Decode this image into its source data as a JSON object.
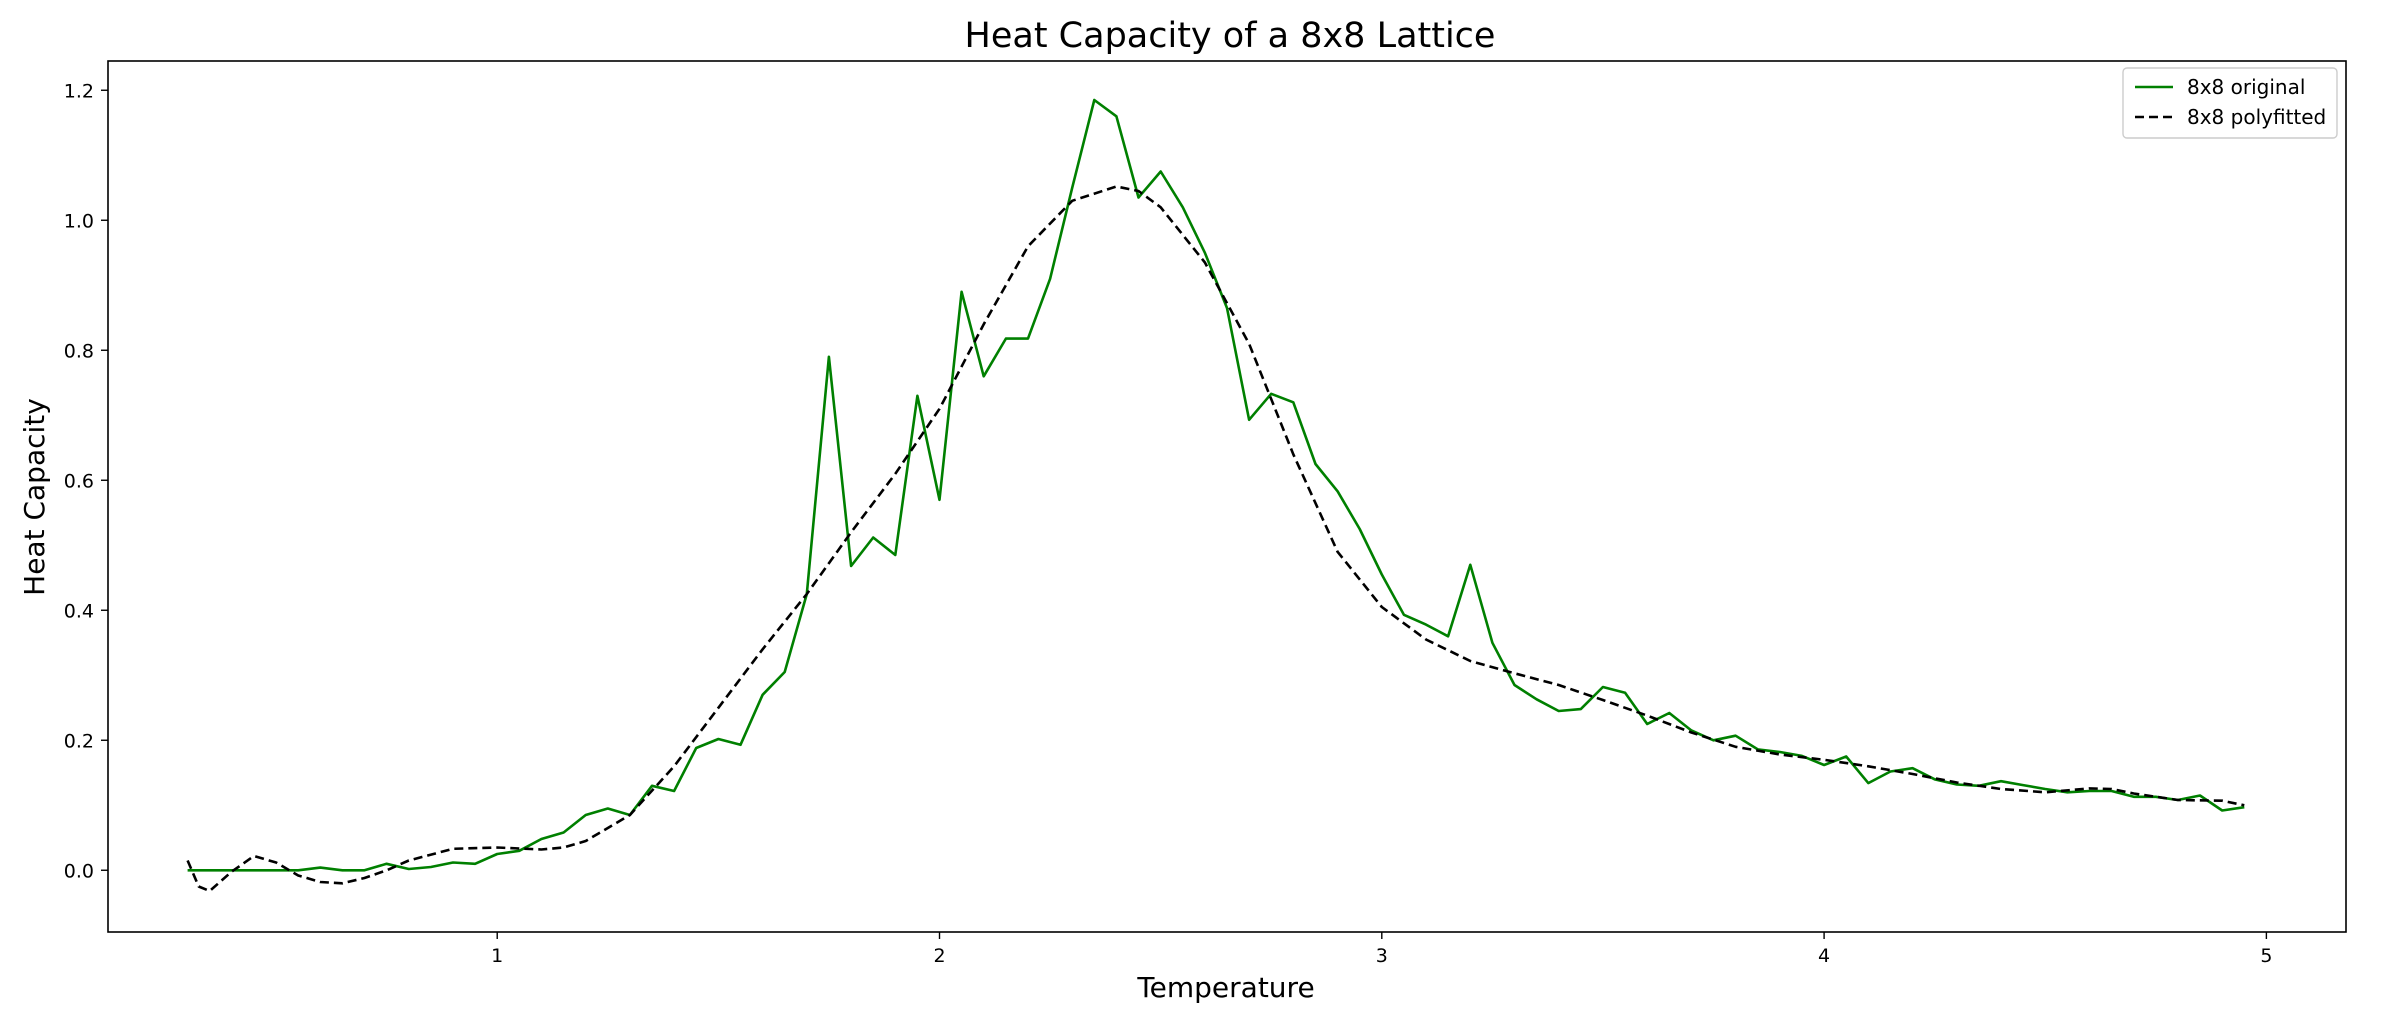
{
  "chart_data": {
    "type": "line",
    "title": "Heat Capacity of a 8x8 Lattice",
    "xlabel": "Temperature",
    "ylabel": "Heat Capacity",
    "xlim": [
      0.12,
      5.18
    ],
    "ylim": [
      -0.095,
      1.245
    ],
    "x_ticks": [
      1,
      2,
      3,
      4,
      5
    ],
    "y_ticks": [
      0.0,
      0.2,
      0.4,
      0.6,
      0.8,
      1.0,
      1.2
    ],
    "grid": false,
    "legend_position": "top-right",
    "series": [
      {
        "name": "8x8 original",
        "color": "#008000",
        "style": "solid",
        "x": [
          0.3,
          0.35,
          0.4,
          0.45,
          0.5,
          0.55,
          0.6,
          0.65,
          0.7,
          0.75,
          0.8,
          0.85,
          0.9,
          0.95,
          1.0,
          1.05,
          1.1,
          1.15,
          1.2,
          1.25,
          1.3,
          1.35,
          1.4,
          1.45,
          1.5,
          1.55,
          1.6,
          1.65,
          1.7,
          1.75,
          1.8,
          1.85,
          1.9,
          1.95,
          2.0,
          2.05,
          2.1,
          2.15,
          2.2,
          2.25,
          2.3,
          2.35,
          2.4,
          2.45,
          2.5,
          2.55,
          2.6,
          2.65,
          2.7,
          2.75,
          2.8,
          2.85,
          2.9,
          2.95,
          3.0,
          3.05,
          3.1,
          3.15,
          3.2,
          3.25,
          3.3,
          3.35,
          3.4,
          3.45,
          3.5,
          3.55,
          3.6,
          3.65,
          3.7,
          3.75,
          3.8,
          3.85,
          3.9,
          3.95,
          4.0,
          4.05,
          4.1,
          4.15,
          4.2,
          4.25,
          4.3,
          4.35,
          4.4,
          4.45,
          4.5,
          4.55,
          4.6,
          4.65,
          4.7,
          4.75,
          4.8,
          4.85,
          4.9,
          4.95
        ],
        "y": [
          0.0,
          0.0,
          0.0,
          0.0,
          0.0,
          0.0,
          0.004,
          0.0,
          0.0,
          0.01,
          0.002,
          0.005,
          0.012,
          0.01,
          0.025,
          0.03,
          0.048,
          0.058,
          0.085,
          0.095,
          0.085,
          0.13,
          0.122,
          0.188,
          0.202,
          0.193,
          0.27,
          0.305,
          0.425,
          0.79,
          0.468,
          0.512,
          0.485,
          0.73,
          0.57,
          0.89,
          0.76,
          0.818,
          0.818,
          0.91,
          1.05,
          1.185,
          1.16,
          1.035,
          1.075,
          1.02,
          0.95,
          0.865,
          0.693,
          0.733,
          0.72,
          0.625,
          0.583,
          0.525,
          0.455,
          0.393,
          0.378,
          0.36,
          0.47,
          0.35,
          0.285,
          0.263,
          0.245,
          0.248,
          0.282,
          0.273,
          0.225,
          0.242,
          0.215,
          0.2,
          0.207,
          0.186,
          0.182,
          0.176,
          0.162,
          0.175,
          0.134,
          0.152,
          0.157,
          0.14,
          0.132,
          0.13,
          0.137,
          0.131,
          0.125,
          0.12,
          0.122,
          0.122,
          0.113,
          0.113,
          0.108,
          0.115,
          0.092,
          0.097
        ]
      },
      {
        "name": "8x8 polyfitted",
        "color": "#000000",
        "style": "dashed",
        "x": [
          0.3,
          0.325,
          0.35,
          0.4,
          0.45,
          0.5,
          0.55,
          0.6,
          0.65,
          0.7,
          0.75,
          0.8,
          0.9,
          1.0,
          1.1,
          1.15,
          1.2,
          1.3,
          1.4,
          1.5,
          1.6,
          1.7,
          1.8,
          1.9,
          2.0,
          2.1,
          2.2,
          2.3,
          2.4,
          2.45,
          2.5,
          2.6,
          2.7,
          2.8,
          2.9,
          3.0,
          3.1,
          3.2,
          3.3,
          3.4,
          3.5,
          3.6,
          3.7,
          3.8,
          3.9,
          4.0,
          4.1,
          4.2,
          4.3,
          4.4,
          4.5,
          4.6,
          4.65,
          4.7,
          4.8,
          4.9,
          4.95
        ],
        "y": [
          0.015,
          -0.025,
          -0.032,
          -0.002,
          0.022,
          0.012,
          -0.008,
          -0.018,
          -0.02,
          -0.012,
          0.0,
          0.015,
          0.033,
          0.035,
          0.032,
          0.035,
          0.045,
          0.085,
          0.16,
          0.25,
          0.34,
          0.425,
          0.52,
          0.61,
          0.71,
          0.84,
          0.96,
          1.03,
          1.052,
          1.045,
          1.02,
          0.935,
          0.81,
          0.64,
          0.49,
          0.405,
          0.355,
          0.322,
          0.303,
          0.285,
          0.262,
          0.238,
          0.212,
          0.19,
          0.178,
          0.17,
          0.16,
          0.148,
          0.135,
          0.125,
          0.12,
          0.126,
          0.125,
          0.118,
          0.108,
          0.107,
          0.1
        ]
      }
    ]
  }
}
